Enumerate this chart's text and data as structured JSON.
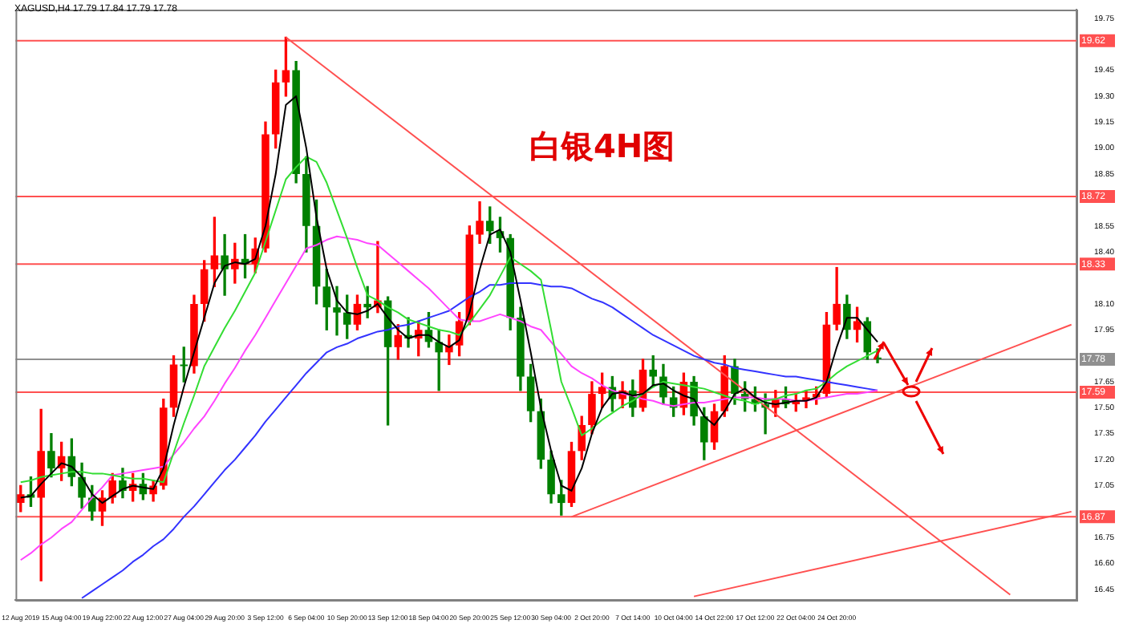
{
  "chart_data": {
    "type": "candlestick",
    "title": "白银4H图",
    "annotations": [
      "XAGUSD,H4 17.79 17.84 17.79 17.78"
    ],
    "categories": [
      "12 Aug 2019",
      null,
      null,
      null,
      "15 Aug 04:00",
      null,
      null,
      null,
      "19 Aug 22:00",
      null,
      null,
      null,
      "22 Aug 12:00",
      null,
      null,
      null,
      "27 Aug 04:00",
      null,
      null,
      null,
      "29 Aug 20:00",
      null,
      null,
      null,
      "3 Sep 12:00",
      null,
      null,
      null,
      "6 Sep 04:00",
      null,
      null,
      null,
      "10 Sep 20:00",
      null,
      null,
      null,
      "13 Sep 12:00",
      null,
      null,
      null,
      "18 Sep 04:00",
      null,
      null,
      null,
      "20 Sep 20:00",
      null,
      null,
      null,
      "25 Sep 12:00",
      null,
      null,
      null,
      "30 Sep 04:00",
      null,
      null,
      null,
      "2 Oct 20:00",
      null,
      null,
      null,
      "7 Oct 14:00",
      null,
      null,
      null,
      "10 Oct 04:00",
      null,
      null,
      null,
      "14 Oct 22:00",
      null,
      null,
      null,
      "17 Oct 12:00",
      null,
      null,
      null,
      "22 Oct 04:00",
      null,
      null,
      null,
      "24 Oct 20:00",
      null,
      null,
      null,
      null,
      null,
      null,
      null,
      null,
      null,
      null,
      null,
      null,
      null,
      null,
      null,
      null,
      null,
      null,
      null,
      null,
      null,
      null,
      null
    ],
    "ohlc": [
      [
        16.95,
        17.05,
        16.9,
        17.0
      ],
      [
        17.0,
        17.1,
        16.93,
        16.98
      ],
      [
        16.98,
        17.49,
        16.5,
        17.25
      ],
      [
        17.25,
        17.35,
        17.1,
        17.15
      ],
      [
        17.15,
        17.3,
        17.08,
        17.22
      ],
      [
        17.22,
        17.32,
        17.05,
        17.1
      ],
      [
        17.1,
        17.18,
        16.92,
        16.98
      ],
      [
        16.98,
        17.05,
        16.85,
        16.9
      ],
      [
        16.9,
        17.02,
        16.82,
        16.98
      ],
      [
        16.98,
        17.12,
        16.95,
        17.08
      ],
      [
        17.08,
        17.15,
        16.98,
        17.02
      ],
      [
        17.02,
        17.12,
        16.96,
        17.06
      ],
      [
        17.06,
        17.12,
        16.97,
        17.0
      ],
      [
        17.0,
        17.08,
        16.96,
        17.05
      ],
      [
        17.05,
        17.55,
        17.03,
        17.5
      ],
      [
        17.5,
        17.8,
        17.45,
        17.75
      ],
      [
        17.75,
        17.85,
        17.65,
        17.74
      ],
      [
        17.74,
        18.15,
        17.7,
        18.1
      ],
      [
        18.1,
        18.35,
        18.0,
        18.3
      ],
      [
        18.3,
        18.6,
        18.2,
        18.38
      ],
      [
        18.38,
        18.5,
        18.15,
        18.3
      ],
      [
        18.3,
        18.45,
        18.22,
        18.36
      ],
      [
        18.36,
        18.5,
        18.25,
        18.33
      ],
      [
        18.33,
        18.48,
        18.28,
        18.42
      ],
      [
        18.42,
        19.15,
        18.4,
        19.08
      ],
      [
        19.08,
        19.45,
        19.0,
        19.38
      ],
      [
        19.38,
        19.64,
        19.3,
        19.45
      ],
      [
        19.45,
        19.5,
        18.8,
        18.85
      ],
      [
        18.85,
        18.95,
        18.4,
        18.55
      ],
      [
        18.55,
        18.7,
        18.1,
        18.2
      ],
      [
        18.2,
        18.3,
        17.95,
        18.08
      ],
      [
        18.08,
        18.2,
        17.92,
        18.05
      ],
      [
        18.05,
        18.15,
        17.9,
        17.98
      ],
      [
        17.98,
        18.15,
        17.95,
        18.1
      ],
      [
        18.1,
        18.2,
        18.02,
        18.08
      ],
      [
        18.08,
        18.46,
        18.05,
        18.12
      ],
      [
        18.12,
        18.14,
        17.4,
        17.85
      ],
      [
        17.85,
        17.98,
        17.78,
        17.92
      ],
      [
        17.92,
        18.02,
        17.85,
        17.9
      ],
      [
        17.9,
        18.0,
        17.8,
        17.95
      ],
      [
        17.95,
        18.05,
        17.85,
        17.88
      ],
      [
        17.88,
        17.95,
        17.6,
        17.82
      ],
      [
        17.82,
        17.92,
        17.75,
        17.86
      ],
      [
        17.86,
        18.05,
        17.8,
        18.0
      ],
      [
        18.0,
        18.55,
        17.98,
        18.5
      ],
      [
        18.5,
        18.69,
        18.45,
        18.58
      ],
      [
        18.58,
        18.66,
        18.45,
        18.52
      ],
      [
        18.52,
        18.6,
        18.4,
        18.48
      ],
      [
        18.48,
        18.5,
        17.95,
        18.02
      ],
      [
        18.02,
        18.08,
        17.6,
        17.68
      ],
      [
        17.68,
        17.75,
        17.42,
        17.48
      ],
      [
        17.48,
        17.55,
        17.15,
        17.2
      ],
      [
        17.2,
        17.25,
        16.95,
        17.0
      ],
      [
        17.0,
        17.08,
        16.88,
        16.95
      ],
      [
        16.95,
        17.3,
        16.93,
        17.25
      ],
      [
        17.25,
        17.45,
        17.2,
        17.4
      ],
      [
        17.4,
        17.65,
        17.35,
        17.58
      ],
      [
        17.58,
        17.7,
        17.5,
        17.62
      ],
      [
        17.62,
        17.68,
        17.48,
        17.55
      ],
      [
        17.55,
        17.65,
        17.5,
        17.6
      ],
      [
        17.6,
        17.66,
        17.45,
        17.5
      ],
      [
        17.5,
        17.78,
        17.48,
        17.72
      ],
      [
        17.72,
        17.8,
        17.62,
        17.68
      ],
      [
        17.68,
        17.75,
        17.52,
        17.56
      ],
      [
        17.56,
        17.62,
        17.45,
        17.5
      ],
      [
        17.5,
        17.7,
        17.46,
        17.65
      ],
      [
        17.65,
        17.68,
        17.4,
        17.45
      ],
      [
        17.45,
        17.5,
        17.2,
        17.3
      ],
      [
        17.3,
        17.52,
        17.26,
        17.48
      ],
      [
        17.48,
        17.8,
        17.45,
        17.74
      ],
      [
        17.74,
        17.78,
        17.52,
        17.58
      ],
      [
        17.58,
        17.65,
        17.48,
        17.55
      ],
      [
        17.55,
        17.62,
        17.48,
        17.52
      ],
      [
        17.52,
        17.58,
        17.35,
        17.5
      ],
      [
        17.5,
        17.6,
        17.45,
        17.55
      ],
      [
        17.55,
        17.62,
        17.5,
        17.52
      ],
      [
        17.52,
        17.58,
        17.48,
        17.54
      ],
      [
        17.54,
        17.6,
        17.5,
        17.56
      ],
      [
        17.56,
        17.62,
        17.52,
        17.58
      ],
      [
        17.58,
        18.05,
        17.56,
        17.98
      ],
      [
        17.98,
        18.31,
        17.95,
        18.1
      ],
      [
        18.1,
        18.15,
        17.9,
        17.95
      ],
      [
        17.95,
        18.08,
        17.88,
        18.0
      ],
      [
        18.0,
        18.02,
        17.78,
        17.82
      ],
      [
        17.79,
        17.84,
        17.76,
        17.78
      ],
      null,
      null,
      null,
      null,
      null,
      null,
      null,
      null,
      null,
      null,
      null,
      null,
      null,
      null,
      null,
      null,
      null,
      null,
      null
    ],
    "colors": [
      "#ff0000",
      "#008000",
      "#ff0000",
      "#008000",
      "#ff0000",
      "#008000",
      "#008000",
      "#008000",
      "#ff0000",
      "#ff0000",
      "#008000",
      "#ff0000",
      "#008000",
      "#ff0000",
      "#ff0000",
      "#ff0000",
      "#008000",
      "#ff0000",
      "#ff0000",
      "#ff0000",
      "#008000",
      "#ff0000",
      "#008000",
      "#ff0000",
      "#ff0000",
      "#ff0000",
      "#ff0000",
      "#008000",
      "#008000",
      "#008000",
      "#008000",
      "#008000",
      "#008000",
      "#ff0000",
      "#008000",
      "#ff0000",
      "#008000",
      "#ff0000",
      "#008000",
      "#ff0000",
      "#008000",
      "#008000",
      "#ff0000",
      "#ff0000",
      "#ff0000",
      "#ff0000",
      "#008000",
      "#008000",
      "#008000",
      "#008000",
      "#008000",
      "#008000",
      "#008000",
      "#008000",
      "#ff0000",
      "#ff0000",
      "#ff0000",
      "#ff0000",
      "#008000",
      "#ff0000",
      "#008000",
      "#ff0000",
      "#008000",
      "#008000",
      "#008000",
      "#ff0000",
      "#008000",
      "#008000",
      "#ff0000",
      "#ff0000",
      "#008000",
      "#008000",
      "#008000",
      "#008000",
      "#ff0000",
      "#008000",
      "#ff0000",
      "#ff0000",
      "#ff0000",
      "#ff0000",
      "#ff0000",
      "#008000",
      "#ff0000",
      "#008000",
      "#008000",
      null,
      null,
      null,
      null,
      null,
      null,
      null,
      null,
      null,
      null,
      null,
      null,
      null,
      null,
      null,
      null,
      null,
      null,
      null
    ],
    "series": [
      {
        "type": "line",
        "color": "#000000",
        "values": [
          16.98,
          16.99,
          17.06,
          17.12,
          17.18,
          17.16,
          17.1,
          17.0,
          16.95,
          16.99,
          17.03,
          17.05,
          17.04,
          17.03,
          17.15,
          17.4,
          17.62,
          17.82,
          18.02,
          18.22,
          18.32,
          18.34,
          18.33,
          18.36,
          18.55,
          18.85,
          19.25,
          19.3,
          19.0,
          18.6,
          18.3,
          18.12,
          18.05,
          18.04,
          18.06,
          18.1,
          18.02,
          17.95,
          17.9,
          17.92,
          17.92,
          17.88,
          17.85,
          17.89,
          18.05,
          18.3,
          18.5,
          18.53,
          18.4,
          18.12,
          17.82,
          17.5,
          17.25,
          17.05,
          17.02,
          17.15,
          17.35,
          17.5,
          17.58,
          17.59,
          17.57,
          17.58,
          17.63,
          17.64,
          17.6,
          17.57,
          17.55,
          17.45,
          17.4,
          17.48,
          17.58,
          17.61,
          17.56,
          17.53,
          17.52,
          17.53,
          17.54,
          17.54,
          17.56,
          17.65,
          17.85,
          18.02,
          18.02,
          17.95,
          17.88,
          null,
          null,
          null,
          null,
          null,
          null,
          null,
          null,
          null,
          null,
          null,
          null,
          null,
          null,
          null,
          null,
          null,
          null,
          null
        ]
      },
      {
        "type": "line",
        "color": "#33dd33",
        "values": [
          17.07,
          17.08,
          17.1,
          17.11,
          17.12,
          17.13,
          17.13,
          17.12,
          17.12,
          17.11,
          17.1,
          17.09,
          17.09,
          17.08,
          17.07,
          17.24,
          17.41,
          17.57,
          17.74,
          17.85,
          17.96,
          18.06,
          18.17,
          18.28,
          18.46,
          18.64,
          18.82,
          18.89,
          18.95,
          18.92,
          18.8,
          18.64,
          18.48,
          18.31,
          18.15,
          18.12,
          18.08,
          18.05,
          18.01,
          17.99,
          17.97,
          17.95,
          17.94,
          17.92,
          17.99,
          18.07,
          18.15,
          18.26,
          18.37,
          18.33,
          18.29,
          18.24,
          17.95,
          17.65,
          17.5,
          17.34,
          17.38,
          17.43,
          17.47,
          17.51,
          17.54,
          17.58,
          17.62,
          17.65,
          17.64,
          17.63,
          17.62,
          17.61,
          17.59,
          17.57,
          17.55,
          17.54,
          17.52,
          17.54,
          17.55,
          17.57,
          17.58,
          17.6,
          17.61,
          17.65,
          17.7,
          17.74,
          17.77,
          17.8,
          17.83,
          null,
          null,
          null,
          null,
          null,
          null,
          null,
          null,
          null,
          null,
          null,
          null,
          null,
          null,
          null,
          null,
          null,
          null,
          null
        ]
      },
      {
        "type": "line",
        "color": "#ff44ff",
        "values": [
          16.62,
          16.66,
          16.71,
          16.75,
          16.8,
          16.84,
          16.91,
          16.98,
          17.04,
          17.11,
          17.12,
          17.13,
          17.14,
          17.15,
          17.16,
          17.23,
          17.3,
          17.38,
          17.45,
          17.54,
          17.64,
          17.73,
          17.83,
          17.92,
          18.02,
          18.12,
          18.22,
          18.32,
          18.42,
          18.44,
          18.47,
          18.49,
          18.48,
          18.47,
          18.45,
          18.44,
          18.39,
          18.34,
          18.29,
          18.24,
          18.19,
          18.13,
          18.07,
          18.01,
          18.0,
          18.0,
          18.02,
          18.04,
          18.02,
          18.0,
          17.97,
          17.95,
          17.88,
          17.81,
          17.74,
          17.7,
          17.67,
          17.63,
          17.6,
          17.58,
          17.57,
          17.55,
          17.54,
          17.52,
          17.51,
          17.52,
          17.53,
          17.53,
          17.54,
          17.55,
          17.56,
          17.56,
          17.56,
          17.55,
          17.55,
          17.55,
          17.54,
          17.54,
          17.55,
          17.56,
          17.57,
          17.58,
          17.58,
          17.59,
          17.6,
          null,
          null,
          null,
          null,
          null,
          null,
          null,
          null,
          null,
          null,
          null,
          null,
          null,
          null,
          null,
          null,
          null,
          null,
          null
        ]
      },
      {
        "type": "line",
        "color": "#3333ff",
        "values": [
          null,
          null,
          null,
          null,
          null,
          null,
          16.4,
          16.44,
          16.48,
          16.52,
          16.56,
          16.61,
          16.65,
          16.7,
          16.74,
          16.8,
          16.87,
          16.93,
          17.0,
          17.07,
          17.14,
          17.2,
          17.27,
          17.34,
          17.42,
          17.49,
          17.56,
          17.63,
          17.7,
          17.76,
          17.82,
          17.85,
          17.87,
          17.9,
          17.92,
          17.94,
          17.95,
          17.97,
          17.98,
          18.0,
          18.02,
          18.04,
          18.06,
          18.1,
          18.14,
          18.17,
          18.21,
          18.21,
          18.22,
          18.22,
          18.22,
          18.21,
          18.2,
          18.2,
          18.19,
          18.16,
          18.13,
          18.11,
          18.08,
          18.04,
          18.0,
          17.96,
          17.92,
          17.89,
          17.86,
          17.83,
          17.8,
          17.78,
          17.76,
          17.75,
          17.73,
          17.72,
          17.71,
          17.7,
          17.69,
          17.68,
          17.68,
          17.67,
          17.66,
          17.65,
          17.64,
          17.63,
          17.62,
          17.61,
          17.6,
          null,
          null,
          null,
          null,
          null,
          null,
          null,
          null,
          null,
          null,
          null,
          null,
          null,
          null,
          null,
          null,
          null,
          null,
          null
        ]
      },
      {
        "type": "line",
        "color": "#ff5050",
        "values": [
          null,
          null,
          null,
          null,
          null,
          null,
          null,
          null,
          null,
          null,
          null,
          null,
          null,
          null,
          null,
          null,
          null,
          null,
          null,
          null,
          null,
          null,
          null,
          null,
          null,
          null,
          19.64,
          null,
          null,
          null,
          null,
          null,
          null,
          null,
          null,
          null,
          null,
          null,
          null,
          null,
          null,
          null,
          null,
          null,
          null,
          null,
          null,
          null,
          null,
          null,
          null,
          null,
          null,
          null,
          null,
          null,
          null,
          null,
          null,
          null,
          null,
          null,
          null,
          null,
          null,
          null,
          null,
          null,
          null,
          null,
          null,
          null,
          null,
          null,
          null,
          null,
          null,
          null,
          null,
          null,
          null,
          null,
          null,
          null,
          null,
          null,
          null,
          null,
          null,
          null,
          null,
          null,
          null,
          null,
          null,
          null,
          null,
          16.42,
          null,
          null,
          null,
          null,
          null,
          null
        ]
      },
      {
        "type": "line",
        "color": "#ff5050",
        "values": [
          null,
          null,
          null,
          null,
          null,
          null,
          null,
          null,
          null,
          null,
          null,
          null,
          null,
          null,
          null,
          null,
          null,
          null,
          null,
          null,
          null,
          null,
          null,
          null,
          null,
          null,
          null,
          null,
          null,
          null,
          null,
          null,
          null,
          null,
          null,
          null,
          null,
          null,
          null,
          null,
          null,
          null,
          null,
          null,
          null,
          null,
          null,
          null,
          null,
          null,
          null,
          null,
          null,
          null,
          16.87,
          null,
          null,
          null,
          null,
          null,
          null,
          null,
          null,
          null,
          null,
          null,
          null,
          null,
          null,
          null,
          null,
          null,
          null,
          null,
          null,
          null,
          null,
          null,
          null,
          null,
          null,
          null,
          null,
          null,
          null,
          null,
          null,
          null,
          null,
          null,
          null,
          null,
          null,
          null,
          null,
          null,
          null,
          null,
          null,
          null,
          null,
          null,
          null,
          17.98
        ]
      },
      {
        "type": "line",
        "color": "#ff5050",
        "values": [
          null,
          null,
          null,
          null,
          null,
          null,
          null,
          null,
          null,
          null,
          null,
          null,
          null,
          null,
          null,
          null,
          null,
          null,
          null,
          null,
          null,
          null,
          null,
          null,
          null,
          null,
          null,
          null,
          null,
          null,
          null,
          null,
          null,
          null,
          null,
          null,
          null,
          null,
          null,
          null,
          null,
          null,
          null,
          null,
          null,
          null,
          null,
          null,
          null,
          null,
          null,
          null,
          null,
          null,
          null,
          null,
          null,
          null,
          null,
          null,
          null,
          null,
          null,
          null,
          null,
          null,
          16.41,
          null,
          null,
          null,
          null,
          null,
          null,
          null,
          null,
          null,
          null,
          null,
          null,
          null,
          null,
          null,
          null,
          null,
          null,
          null,
          null,
          null,
          null,
          null,
          null,
          null,
          null,
          null,
          null,
          null,
          null,
          null,
          null,
          null,
          null,
          null,
          null,
          16.9
        ]
      }
    ],
    "ylim": [
      16.39,
      19.8
    ],
    "yticks": [
      {
        "value": 19.75,
        "label": "19.75"
      },
      {
        "value": 19.45,
        "label": "19.45"
      },
      {
        "value": 19.3,
        "label": "19.30"
      },
      {
        "value": 19.15,
        "label": "19.15"
      },
      {
        "value": 19.0,
        "label": "19.00"
      },
      {
        "value": 18.85,
        "label": "18.85"
      },
      {
        "value": 18.55,
        "label": "18.55"
      },
      {
        "value": 18.4,
        "label": "18.40"
      },
      {
        "value": 18.1,
        "label": "18.10"
      },
      {
        "value": 17.95,
        "label": "17.95"
      },
      {
        "value": 17.65,
        "label": "17.65"
      },
      {
        "value": 17.5,
        "label": "17.50"
      },
      {
        "value": 17.35,
        "label": "17.35"
      },
      {
        "value": 17.2,
        "label": "17.20"
      },
      {
        "value": 17.05,
        "label": "17.05"
      },
      {
        "value": 16.75,
        "label": "16.75"
      },
      {
        "value": 16.6,
        "label": "16.60"
      },
      {
        "value": 16.45,
        "label": "16.45"
      }
    ],
    "ref_lines": [
      {
        "axis": "y",
        "value": 19.62,
        "label": "19.62",
        "color": "#ff5050"
      },
      {
        "axis": "y",
        "value": 18.72,
        "label": "18.72",
        "color": "#ff5050"
      },
      {
        "axis": "y",
        "value": 18.33,
        "label": "18.33",
        "color": "#ff5050"
      },
      {
        "axis": "y",
        "value": 17.78,
        "label": "17.78",
        "color": "#909090"
      },
      {
        "axis": "y",
        "value": 17.59,
        "label": "17.59",
        "color": "#ff5050"
      },
      {
        "axis": "y",
        "value": 16.87,
        "label": "16.87",
        "color": "#ff5050"
      }
    ]
  }
}
